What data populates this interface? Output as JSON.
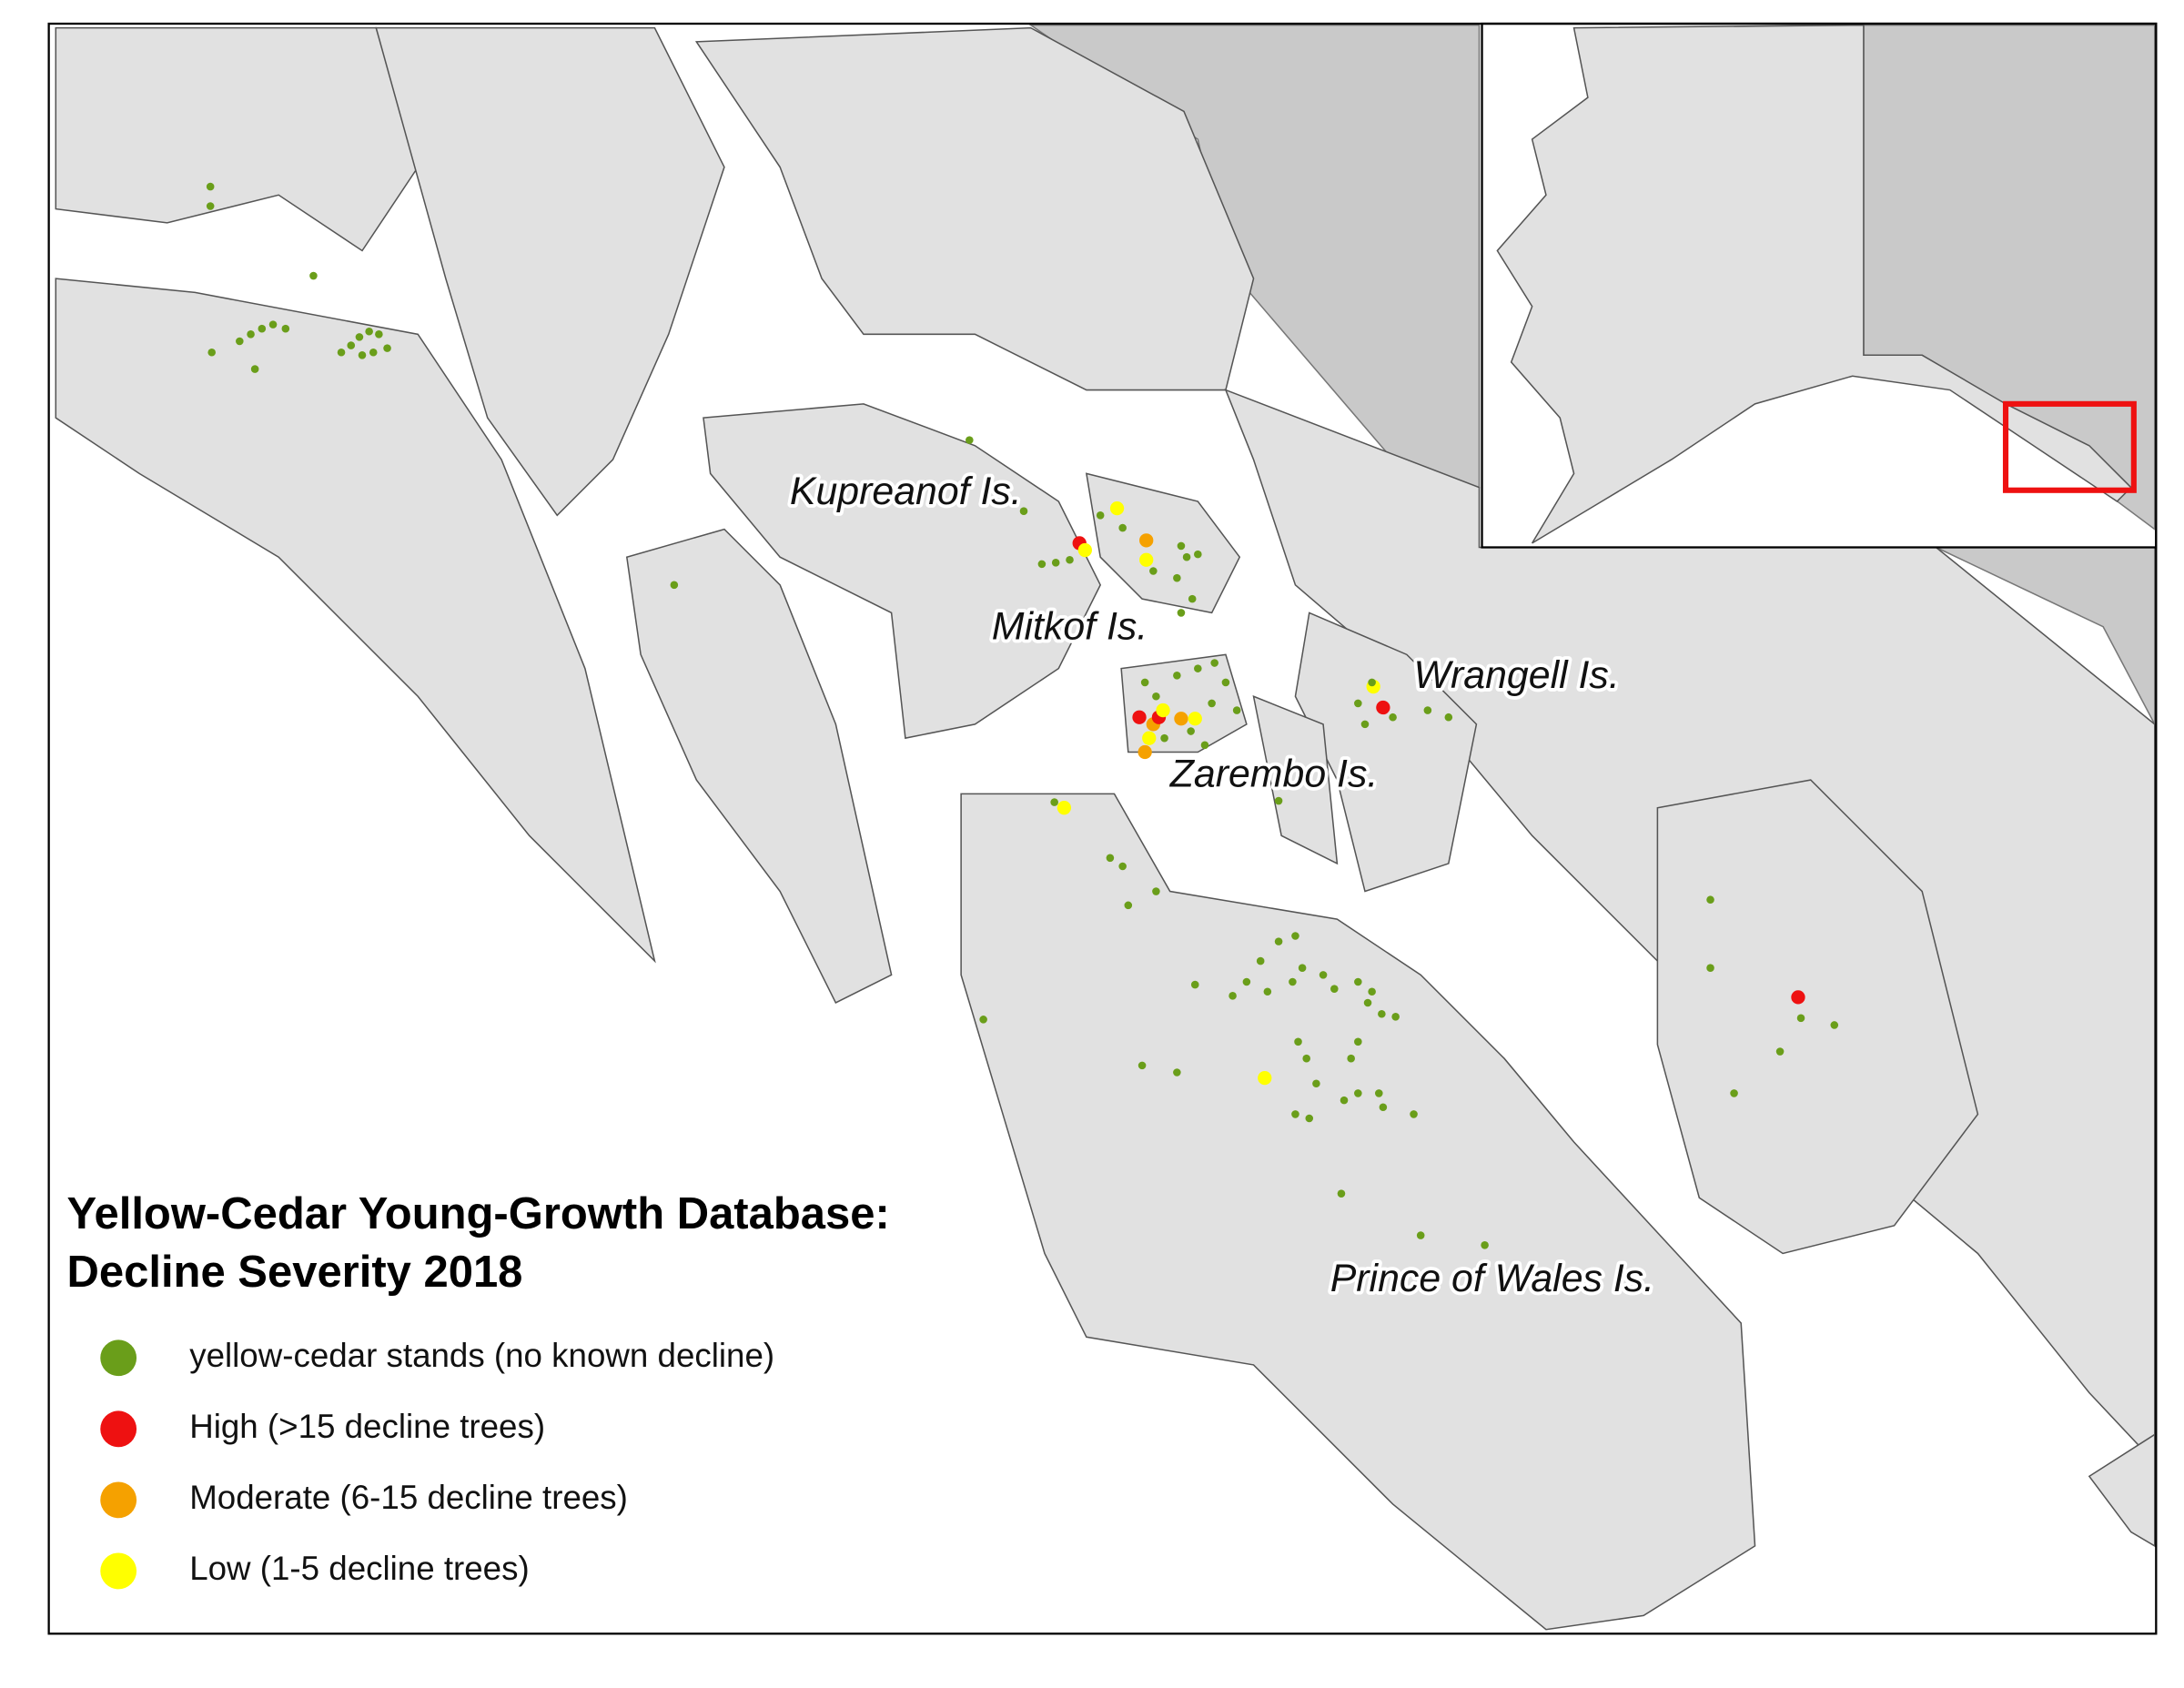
{
  "title": [
    "Yellow-Cedar Young-Growth Database:",
    "Decline Severity 2018"
  ],
  "legend": [
    {
      "label": "yellow-cedar stands (no known decline)",
      "color": "#6a9e1a"
    },
    {
      "label": "High (>15 decline trees)",
      "color": "#ee1111"
    },
    {
      "label": "Moderate (6-15 decline trees)",
      "color": "#f5a100"
    },
    {
      "label": "Low (1-5 decline trees)",
      "color": "#ffff00"
    }
  ],
  "places": [
    "Kupreanof Is.",
    "Mitkof Is.",
    "Wrangell Is.",
    "Zarembo Is.",
    "Prince of Wales Is."
  ]
}
